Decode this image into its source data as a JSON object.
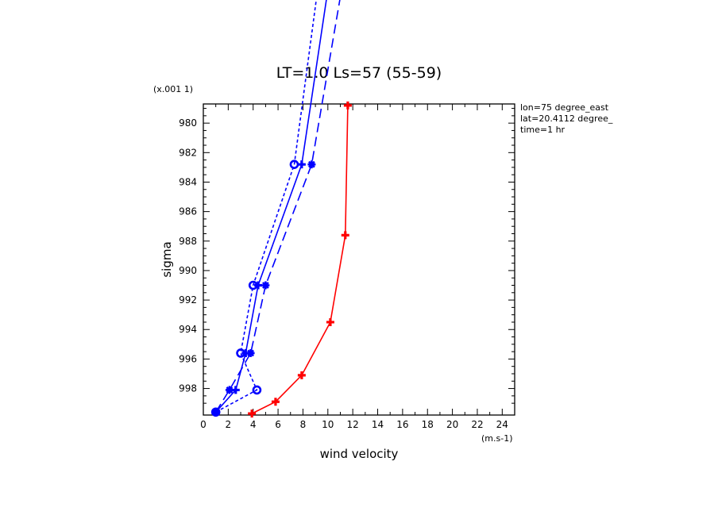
{
  "chart_data": {
    "type": "line",
    "title": "LT=1.0  Ls=57 (55-59)",
    "xlabel": "wind velocity",
    "xunit": "(m.s-1)",
    "ylabel": "sigma",
    "yscale_note": "(x.001 1)",
    "xlim": [
      0,
      25
    ],
    "ylim": [
      999.8,
      978.7
    ],
    "xticks": [
      0,
      2,
      4,
      6,
      8,
      10,
      12,
      14,
      16,
      18,
      20,
      22,
      24
    ],
    "yticks": [
      980,
      982,
      984,
      986,
      988,
      990,
      992,
      994,
      996,
      998
    ],
    "info": [
      "lon=75 degree_east",
      "lat=20.4112 degree_",
      "time=1 hr"
    ],
    "series": [
      {
        "color": "#ff0000",
        "dash": "solid",
        "marker": "plus",
        "clip": true,
        "x": [
          3.9,
          5.8,
          7.9,
          10.2,
          11.4,
          11.6
        ],
        "y": [
          999.7,
          998.9,
          997.1,
          993.5,
          987.6,
          978.8
        ]
      },
      {
        "color": "#0000ff",
        "dash": "solid",
        "marker": "plus",
        "clip": false,
        "x": [
          1.0,
          2.6,
          3.4,
          4.4,
          7.9,
          10.7
        ],
        "y": [
          999.6,
          998.1,
          995.6,
          991.0,
          982.8,
          967.0
        ]
      },
      {
        "color": "#0000ff",
        "dash": "long",
        "marker": "star",
        "clip": false,
        "x": [
          1.0,
          2.1,
          3.8,
          5.0,
          8.7,
          11.9
        ],
        "y": [
          999.6,
          998.1,
          995.6,
          991.0,
          982.8,
          967.0
        ]
      },
      {
        "color": "#0000ff",
        "dash": "short",
        "marker": "circle",
        "clip": false,
        "x": [
          1.0,
          4.3,
          3.0,
          4.0,
          7.3,
          9.8
        ],
        "y": [
          999.6,
          998.1,
          995.6,
          991.0,
          982.8,
          967.0
        ]
      }
    ]
  }
}
